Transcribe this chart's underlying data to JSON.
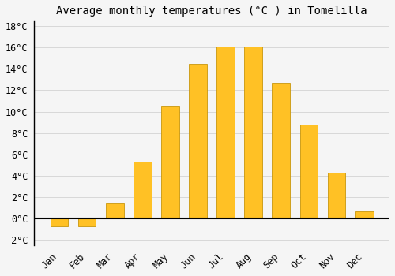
{
  "title": "Average monthly temperatures (°C ) in Tomelilla",
  "categories": [
    "Jan",
    "Feb",
    "Mar",
    "Apr",
    "May",
    "Jun",
    "Jul",
    "Aug",
    "Sep",
    "Oct",
    "Nov",
    "Dec"
  ],
  "values": [
    -0.7,
    -0.7,
    1.4,
    5.3,
    10.5,
    14.5,
    16.1,
    16.1,
    12.7,
    8.8,
    4.3,
    0.7
  ],
  "bar_color": "#FFC125",
  "bar_edge_color": "#C8960C",
  "background_color": "#F5F5F5",
  "grid_color": "#D8D8D8",
  "ylim": [
    -2.5,
    18.5
  ],
  "yticks": [
    -2,
    0,
    2,
    4,
    6,
    8,
    10,
    12,
    14,
    16,
    18
  ],
  "title_fontsize": 10,
  "tick_fontsize": 8.5
}
